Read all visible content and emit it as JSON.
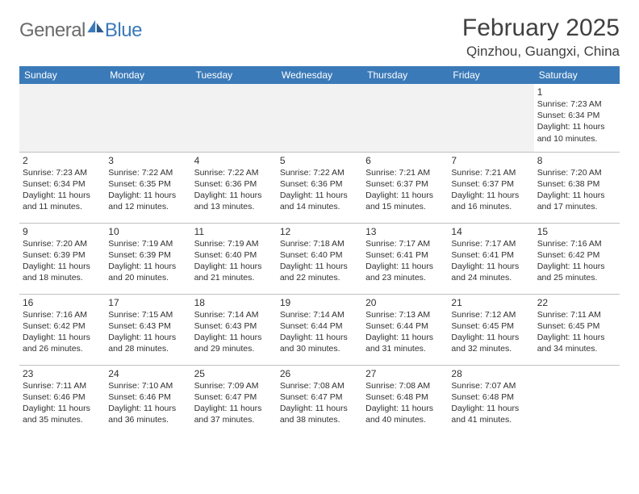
{
  "brand": {
    "part1": "General",
    "part2": "Blue"
  },
  "title": "February 2025",
  "location": "Qinzhou, Guangxi, China",
  "colors": {
    "header_bg": "#3b7ab8",
    "header_text": "#ffffff",
    "text": "#303030",
    "border": "#c0c0c0",
    "alt_row": "#f2f2f2",
    "logo_gray": "#6b6b6b",
    "logo_blue": "#3b7ab8"
  },
  "dayNames": [
    "Sunday",
    "Monday",
    "Tuesday",
    "Wednesday",
    "Thursday",
    "Friday",
    "Saturday"
  ],
  "weeks": [
    [
      null,
      null,
      null,
      null,
      null,
      null,
      {
        "d": "1",
        "sr": "7:23 AM",
        "ss": "6:34 PM",
        "dl": "11 hours and 10 minutes."
      }
    ],
    [
      {
        "d": "2",
        "sr": "7:23 AM",
        "ss": "6:34 PM",
        "dl": "11 hours and 11 minutes."
      },
      {
        "d": "3",
        "sr": "7:22 AM",
        "ss": "6:35 PM",
        "dl": "11 hours and 12 minutes."
      },
      {
        "d": "4",
        "sr": "7:22 AM",
        "ss": "6:36 PM",
        "dl": "11 hours and 13 minutes."
      },
      {
        "d": "5",
        "sr": "7:22 AM",
        "ss": "6:36 PM",
        "dl": "11 hours and 14 minutes."
      },
      {
        "d": "6",
        "sr": "7:21 AM",
        "ss": "6:37 PM",
        "dl": "11 hours and 15 minutes."
      },
      {
        "d": "7",
        "sr": "7:21 AM",
        "ss": "6:37 PM",
        "dl": "11 hours and 16 minutes."
      },
      {
        "d": "8",
        "sr": "7:20 AM",
        "ss": "6:38 PM",
        "dl": "11 hours and 17 minutes."
      }
    ],
    [
      {
        "d": "9",
        "sr": "7:20 AM",
        "ss": "6:39 PM",
        "dl": "11 hours and 18 minutes."
      },
      {
        "d": "10",
        "sr": "7:19 AM",
        "ss": "6:39 PM",
        "dl": "11 hours and 20 minutes."
      },
      {
        "d": "11",
        "sr": "7:19 AM",
        "ss": "6:40 PM",
        "dl": "11 hours and 21 minutes."
      },
      {
        "d": "12",
        "sr": "7:18 AM",
        "ss": "6:40 PM",
        "dl": "11 hours and 22 minutes."
      },
      {
        "d": "13",
        "sr": "7:17 AM",
        "ss": "6:41 PM",
        "dl": "11 hours and 23 minutes."
      },
      {
        "d": "14",
        "sr": "7:17 AM",
        "ss": "6:41 PM",
        "dl": "11 hours and 24 minutes."
      },
      {
        "d": "15",
        "sr": "7:16 AM",
        "ss": "6:42 PM",
        "dl": "11 hours and 25 minutes."
      }
    ],
    [
      {
        "d": "16",
        "sr": "7:16 AM",
        "ss": "6:42 PM",
        "dl": "11 hours and 26 minutes."
      },
      {
        "d": "17",
        "sr": "7:15 AM",
        "ss": "6:43 PM",
        "dl": "11 hours and 28 minutes."
      },
      {
        "d": "18",
        "sr": "7:14 AM",
        "ss": "6:43 PM",
        "dl": "11 hours and 29 minutes."
      },
      {
        "d": "19",
        "sr": "7:14 AM",
        "ss": "6:44 PM",
        "dl": "11 hours and 30 minutes."
      },
      {
        "d": "20",
        "sr": "7:13 AM",
        "ss": "6:44 PM",
        "dl": "11 hours and 31 minutes."
      },
      {
        "d": "21",
        "sr": "7:12 AM",
        "ss": "6:45 PM",
        "dl": "11 hours and 32 minutes."
      },
      {
        "d": "22",
        "sr": "7:11 AM",
        "ss": "6:45 PM",
        "dl": "11 hours and 34 minutes."
      }
    ],
    [
      {
        "d": "23",
        "sr": "7:11 AM",
        "ss": "6:46 PM",
        "dl": "11 hours and 35 minutes."
      },
      {
        "d": "24",
        "sr": "7:10 AM",
        "ss": "6:46 PM",
        "dl": "11 hours and 36 minutes."
      },
      {
        "d": "25",
        "sr": "7:09 AM",
        "ss": "6:47 PM",
        "dl": "11 hours and 37 minutes."
      },
      {
        "d": "26",
        "sr": "7:08 AM",
        "ss": "6:47 PM",
        "dl": "11 hours and 38 minutes."
      },
      {
        "d": "27",
        "sr": "7:08 AM",
        "ss": "6:48 PM",
        "dl": "11 hours and 40 minutes."
      },
      {
        "d": "28",
        "sr": "7:07 AM",
        "ss": "6:48 PM",
        "dl": "11 hours and 41 minutes."
      },
      null
    ]
  ],
  "labels": {
    "sunrise": "Sunrise:",
    "sunset": "Sunset:",
    "daylight": "Daylight:"
  }
}
